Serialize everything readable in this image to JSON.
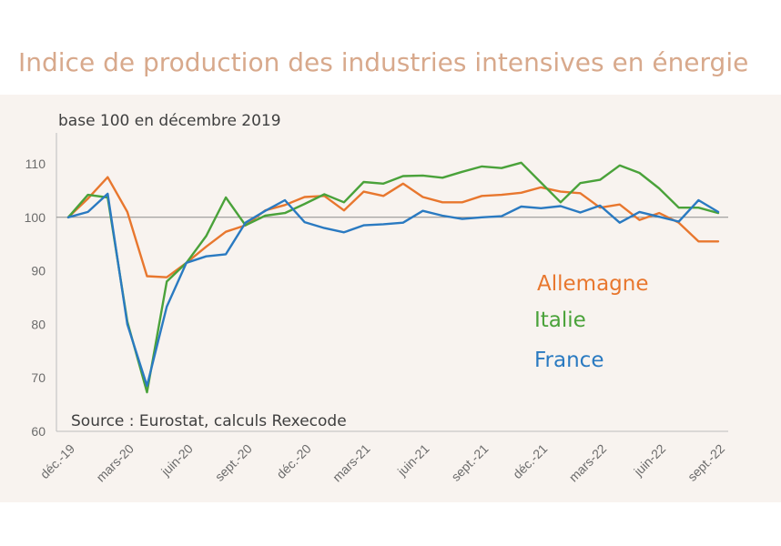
{
  "chart_data": {
    "type": "line",
    "title": "Indice de production des industries intensives en énergie",
    "subtitle": "base 100 en décembre 2019",
    "source": "Source : Eurostat, calculs Rexecode",
    "ylim": [
      60,
      115
    ],
    "yticks": [
      60,
      70,
      80,
      90,
      100,
      110
    ],
    "x_tick_labels": [
      "déc.-19",
      "mars-20",
      "juin-20",
      "sept.-20",
      "déc.-20",
      "mars-21",
      "juin-21",
      "sept.-21",
      "déc.-21",
      "mars-22",
      "juin-22",
      "sept.-22"
    ],
    "x_tick_every": 3,
    "x_periods": 34,
    "reference_line": 100,
    "series": [
      {
        "name": "Allemagne",
        "color": "#e8772e",
        "values": [
          100,
          103.5,
          107.5,
          101,
          89,
          88.8,
          91.5,
          94.5,
          97.3,
          98.5,
          101.3,
          102.3,
          103.8,
          104,
          101.3,
          104.8,
          104,
          106.3,
          103.8,
          102.8,
          102.8,
          104,
          104.2,
          104.6,
          105.6,
          104.8,
          104.5,
          101.8,
          102.4,
          99.5,
          100.8,
          99,
          95.5,
          95.5
        ]
      },
      {
        "name": "Italie",
        "color": "#4aa23a",
        "values": [
          100,
          104.2,
          103.7,
          80.5,
          67.3,
          88,
          91.5,
          96.5,
          103.7,
          98.5,
          100.3,
          100.8,
          102.5,
          104.3,
          102.8,
          106.6,
          106.3,
          107.7,
          107.8,
          107.4,
          108.5,
          109.5,
          109.2,
          110.2,
          106.5,
          102.8,
          106.4,
          107,
          109.7,
          108.3,
          105.4,
          101.8,
          101.8,
          100.8
        ]
      },
      {
        "name": "France",
        "color": "#2a7ac1",
        "values": [
          100,
          101,
          104.4,
          80,
          68.5,
          83.3,
          91.5,
          92.7,
          93.1,
          99,
          101.2,
          103.2,
          99.1,
          98,
          97.2,
          98.5,
          98.7,
          99,
          101.2,
          100.3,
          99.7,
          100,
          100.2,
          102,
          101.7,
          102.1,
          100.9,
          102.2,
          99,
          101,
          100.1,
          99.2,
          103.2,
          101
        ]
      }
    ]
  }
}
